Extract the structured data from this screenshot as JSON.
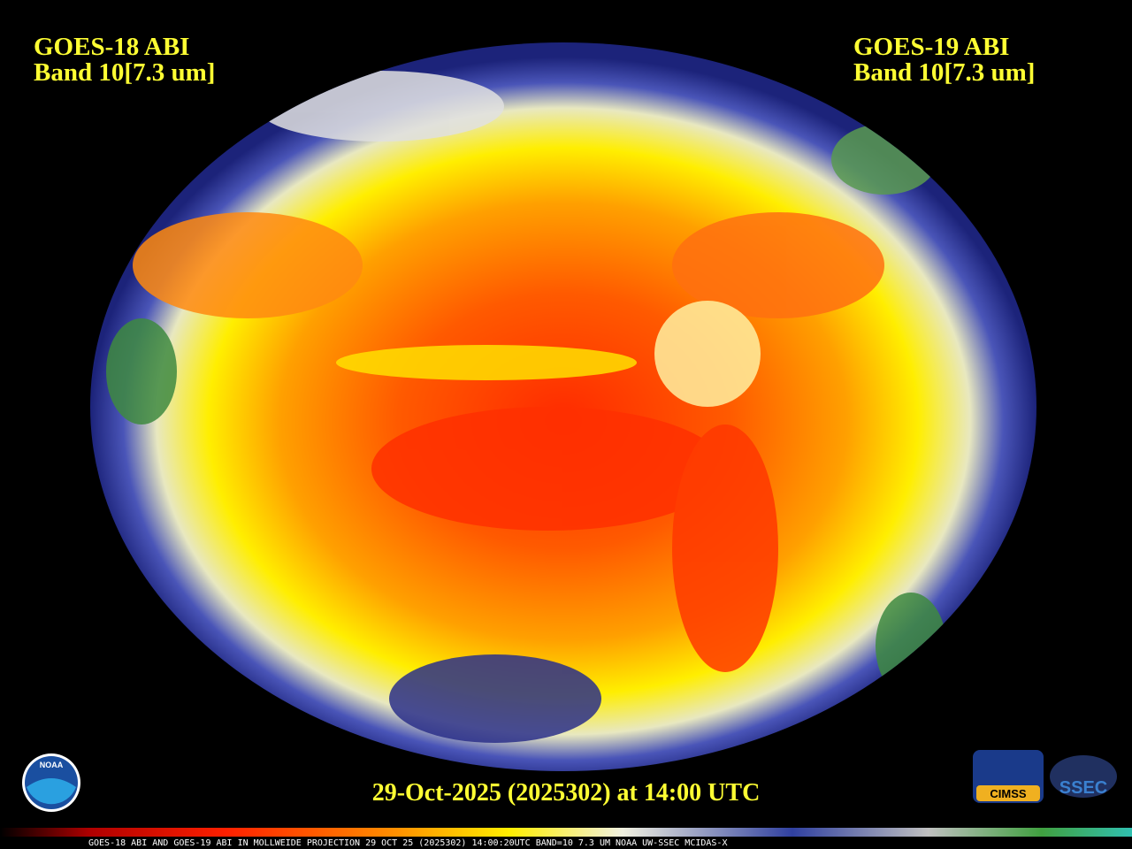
{
  "header": {
    "left": {
      "line1": "GOES-18 ABI",
      "line2": "Band 10[7.3 um]"
    },
    "right": {
      "line1": "GOES-19 ABI",
      "line2": "Band 10[7.3 um]"
    }
  },
  "timestamp": "29-Oct-2025 (2025302) at 14:00 UTC",
  "footer": "GOES-18 ABI AND GOES-19 ABI IN MOLLWEIDE PROJECTION 29 OCT 25 (2025302) 14:00:20UTC BAND=10 7.3 UM NOAA UW-SSEC MCIDAS-X",
  "logos": {
    "noaa": "NOAA",
    "cimss": "CIMSS",
    "ssec": "SSEC"
  }
}
